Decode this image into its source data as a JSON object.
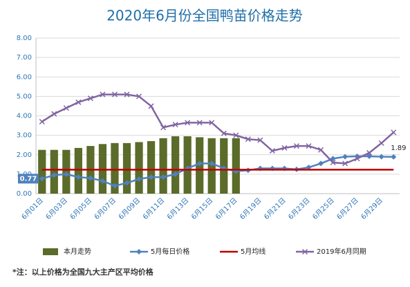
{
  "chart_data": {
    "type": "bar_line",
    "title": "2020年6月份全国鸭苗价格走势",
    "note": "*注：以上价格为全国九大主产区平均价格",
    "categories": [
      "6月01日",
      null,
      "6月03日",
      null,
      "6月05日",
      null,
      "6月07日",
      null,
      "6月09日",
      null,
      "6月11日",
      null,
      "6月13日",
      null,
      "6月15日",
      null,
      "6月17日",
      null,
      "6月19日",
      null,
      "6月21日",
      null,
      "6月23日",
      null,
      "6月25日",
      null,
      "6月27日",
      null,
      "6月29日",
      null
    ],
    "series": [
      {
        "name": "本月走势",
        "type": "bar",
        "color": "#5b6b2a",
        "values": [
          2.25,
          2.25,
          2.25,
          2.35,
          2.45,
          2.55,
          2.6,
          2.6,
          2.65,
          2.7,
          2.85,
          2.95,
          2.95,
          2.9,
          2.85,
          2.85,
          2.85,
          null,
          null,
          null,
          null,
          null,
          null,
          null,
          null,
          null,
          null,
          null,
          null,
          null
        ]
      },
      {
        "name": "5月每日价格",
        "type": "line",
        "marker": "diamond",
        "color": "#4f81bd",
        "values": [
          0.77,
          0.95,
          1.0,
          0.85,
          0.8,
          0.65,
          0.4,
          0.55,
          0.75,
          0.85,
          0.85,
          1.0,
          1.3,
          1.55,
          1.55,
          1.3,
          1.15,
          1.2,
          1.3,
          1.3,
          1.3,
          1.25,
          1.35,
          1.55,
          1.8,
          1.9,
          1.92,
          1.92,
          1.9,
          1.89
        ],
        "value_labels": [
          "0.77",
          null,
          null,
          null,
          null,
          null,
          null,
          null,
          null,
          null,
          null,
          null,
          null,
          null,
          null,
          null,
          null,
          null,
          null,
          null,
          null,
          null,
          null,
          null,
          null,
          null,
          null,
          null,
          null,
          "1.89"
        ]
      },
      {
        "name": "5月均线",
        "type": "line",
        "marker": "none",
        "color": "#c00000",
        "values": [
          1.23,
          1.23,
          1.23,
          1.23,
          1.23,
          1.23,
          1.23,
          1.23,
          1.23,
          1.23,
          1.23,
          1.23,
          1.23,
          1.23,
          1.23,
          1.23,
          1.23,
          1.23,
          1.23,
          1.23,
          1.23,
          1.23,
          1.23,
          1.23,
          1.23,
          1.23,
          1.23,
          1.23,
          1.23,
          1.23
        ]
      },
      {
        "name": "2019年6月同期",
        "type": "line",
        "marker": "x",
        "color": "#8064a2",
        "values": [
          3.7,
          4.1,
          4.4,
          4.7,
          4.9,
          5.1,
          5.1,
          5.1,
          5.0,
          4.5,
          3.4,
          3.55,
          3.65,
          3.65,
          3.65,
          3.1,
          3.0,
          2.8,
          2.75,
          2.2,
          2.35,
          2.45,
          2.45,
          2.25,
          1.6,
          1.55,
          1.8,
          2.1,
          2.6,
          3.15
        ]
      }
    ],
    "ylim": [
      0,
      8
    ],
    "yticks": [
      {
        "value": 0,
        "label": "0.00"
      },
      {
        "value": 1,
        "label": "1.00"
      },
      {
        "value": 2,
        "label": "2.00"
      },
      {
        "value": 3,
        "label": "3.00"
      },
      {
        "value": 4,
        "label": "4.00"
      },
      {
        "value": 5,
        "label": "5.00"
      },
      {
        "value": 6,
        "label": "6.00"
      },
      {
        "value": 7,
        "label": "7.00"
      },
      {
        "value": 8,
        "label": "8.00"
      }
    ],
    "grid": true,
    "legend": "bottom"
  }
}
